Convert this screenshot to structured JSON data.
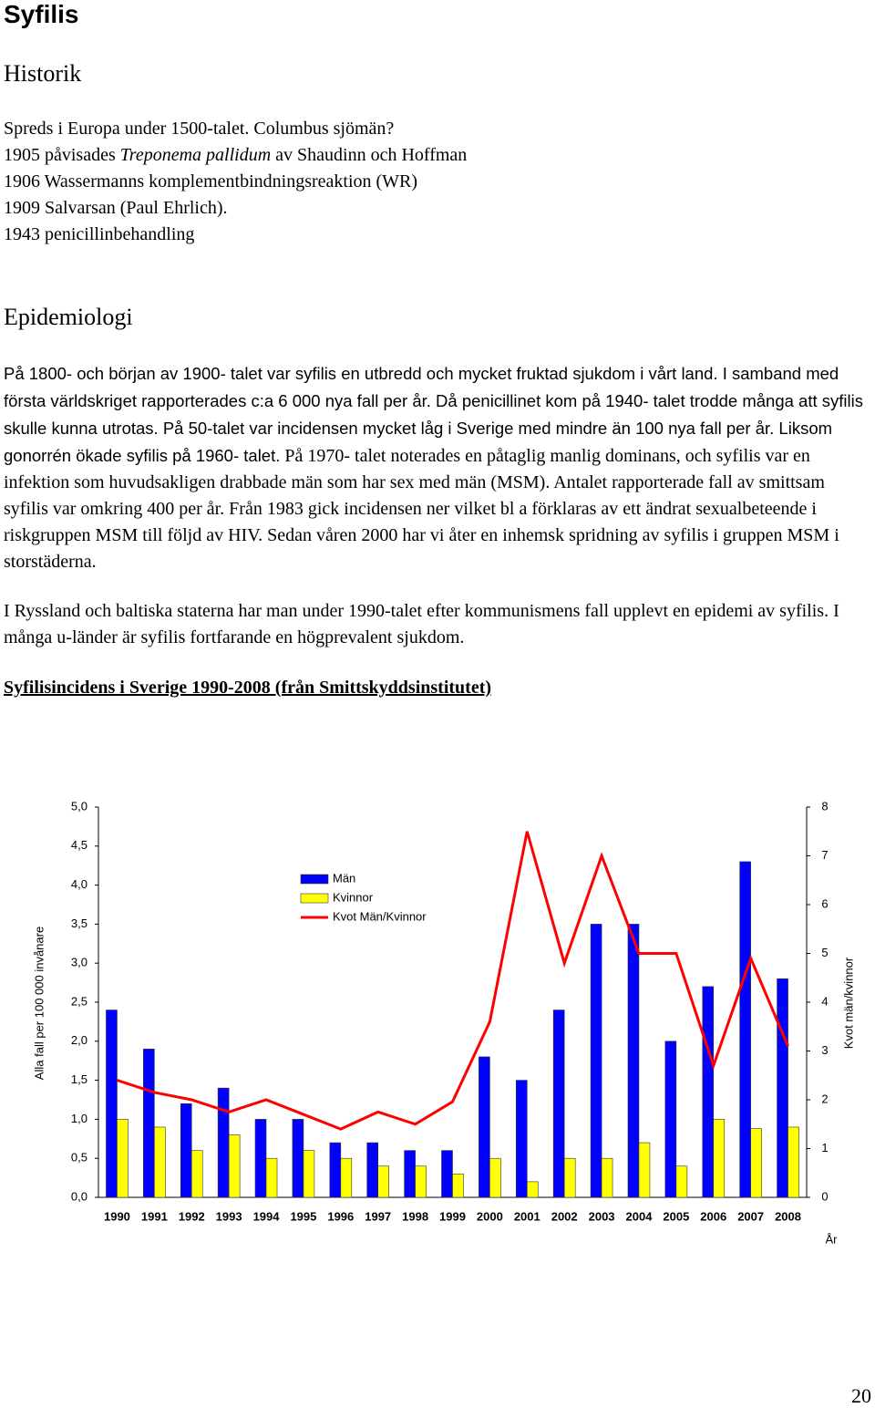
{
  "header": {
    "title": "Syfilis"
  },
  "history": {
    "heading": "Historik",
    "lines": [
      "Spreds i Europa under 1500-talet. Columbus sjömän?",
      [
        "1905 påvisades ",
        "Treponema pallidum",
        " av Shaudinn och Hoffman"
      ],
      "1906 Wassermanns komplementbindningsreaktion (WR)",
      "1909 Salvarsan (Paul Ehrlich).",
      "1943 penicillinbehandling"
    ]
  },
  "epidemiology": {
    "heading": "Epidemiologi",
    "paragraphs": [
      [
        " På 1800- och början av 1900- talet var syfilis en utbredd och mycket fruktad sjukdom i vårt land. I samband med första världskriget rapporterades c:a 6 000 nya fall per år. Då penicillinet kom på 1940- talet trodde många att syfilis skulle kunna utrotas. På 50-talet var incidensen mycket låg i Sverige med mindre än 100 nya fall per år. Liksom gonorrén ökade syfilis på 1960- talet.",
        " På 1970- talet noterades en påtaglig manlig dominans, och syfilis var en infektion som huvudsakligen drabbade män som har sex med män (MSM). Antalet rapporterade fall av smittsam syfilis var omkring 400 per år. Från 1983 gick incidensen ner vilket bl a förklaras av ett ändrat sexualbeteende i riskgruppen MSM till följd av HIV. Sedan våren 2000 har vi åter en inhemsk spridning av syfilis i gruppen MSM i storstäderna."
      ],
      [
        " I Ryssland och baltiska staterna har man under 1990-talet efter kommunismens fall upplevt en epidemi av syfilis. I många u-länder är syfilis fortfarande en högprevalent sjukdom."
      ]
    ]
  },
  "chart_caption": "Syfilisincidens i Sverige 1990-2008 (från Smittskyddsinstitutet)",
  "chart_data": {
    "type": "bar",
    "y_label": "Alla fall per 100 000 invånare",
    "y2_label": "Kvot män/kvinnor",
    "x_label": "År",
    "categories": [
      "1990",
      "1991",
      "1992",
      "1993",
      "1994",
      "1995",
      "1996",
      "1997",
      "1998",
      "1999",
      "2000",
      "2001",
      "2002",
      "2003",
      "2004",
      "2005",
      "2006",
      "2007",
      "2008"
    ],
    "series": [
      {
        "name": "Män",
        "type": "bar",
        "color": "#0000ff",
        "values": [
          2.4,
          1.9,
          1.2,
          1.4,
          1.0,
          1.0,
          0.7,
          0.7,
          0.6,
          0.6,
          1.8,
          1.5,
          2.4,
          3.5,
          3.5,
          2.0,
          2.7,
          4.3,
          2.8
        ]
      },
      {
        "name": "Kvinnor",
        "type": "bar",
        "color": "#ffff00",
        "values": [
          1.0,
          0.9,
          0.6,
          0.8,
          0.5,
          0.6,
          0.5,
          0.4,
          0.4,
          0.3,
          0.5,
          0.2,
          0.5,
          0.5,
          0.7,
          0.4,
          1.0,
          0.88,
          0.9
        ]
      },
      {
        "name": "Kvot Män/Kvinnor",
        "type": "line",
        "axis": "y2",
        "color": "#ff0000",
        "values": [
          2.4,
          2.15,
          2.0,
          1.75,
          2.0,
          1.7,
          1.4,
          1.75,
          1.5,
          1.96,
          3.6,
          7.5,
          4.8,
          7.0,
          5.0,
          5.0,
          2.7,
          4.9,
          3.1
        ]
      }
    ],
    "ylim": [
      0,
      5
    ],
    "yticks": [
      {
        "value": 0,
        "label": "0,0"
      },
      {
        "value": 0.5,
        "label": "0,5"
      },
      {
        "value": 1,
        "label": "1,0"
      },
      {
        "value": 1.5,
        "label": "1,5"
      },
      {
        "value": 2,
        "label": "2,0"
      },
      {
        "value": 2.5,
        "label": "2,5"
      },
      {
        "value": 3,
        "label": "3,0"
      },
      {
        "value": 3.5,
        "label": "3,5"
      },
      {
        "value": 4,
        "label": "4,0"
      },
      {
        "value": 4.5,
        "label": "4,5"
      },
      {
        "value": 5,
        "label": "5,0"
      }
    ],
    "y2lim": [
      0,
      8
    ],
    "y2ticks": [
      0,
      1,
      2,
      3,
      4,
      5,
      6,
      7,
      8
    ]
  },
  "footer": {
    "page_number": "20"
  }
}
